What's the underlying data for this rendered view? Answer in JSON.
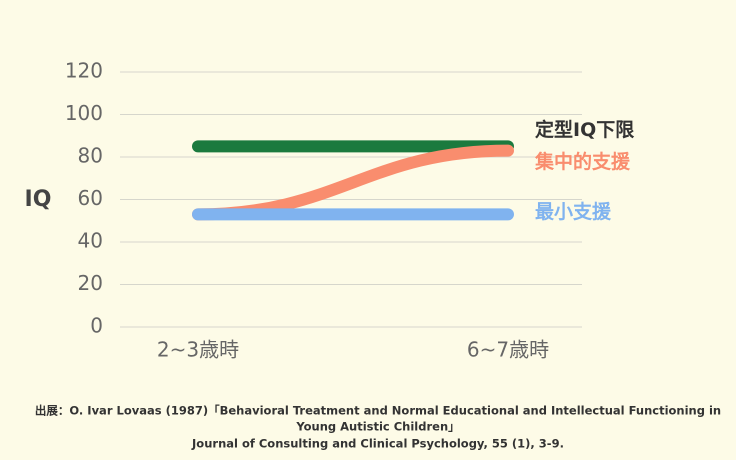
{
  "chart_data": {
    "type": "line",
    "y_label": "IQ",
    "categories": [
      "2~3歳時",
      "6~7歳時"
    ],
    "series": [
      {
        "name": "定型IQ下限",
        "color": "#1b7a3e",
        "values": [
          85,
          85
        ]
      },
      {
        "name": "集中的支援",
        "color": "#f98d6e",
        "values": [
          53,
          83
        ]
      },
      {
        "name": "最小支援",
        "color": "#80b3ef",
        "values": [
          53,
          53
        ]
      }
    ],
    "ylim": [
      0,
      120
    ],
    "yticks": [
      0,
      20,
      40,
      60,
      80,
      100,
      120
    ],
    "grid": true,
    "source": [
      "出展：O. Ivar Lovaas (1987)「Behavioral Treatment and Normal Educational and Intellectual Functioning in",
      "Young Autistic Children」",
      "Journal of Consulting and Clinical Psychology, 55 (1), 3-9."
    ]
  }
}
